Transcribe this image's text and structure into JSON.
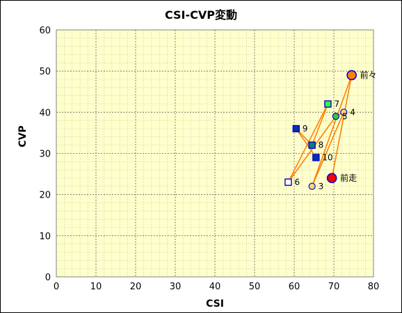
{
  "chart_data": {
    "type": "scatter",
    "title": "CSI-CVP変動",
    "xlabel": "CSI",
    "ylabel": "CVP",
    "xlim": [
      0,
      80
    ],
    "ylim": [
      0,
      60
    ],
    "xticks": [
      0,
      10,
      20,
      30,
      40,
      50,
      60,
      70,
      80
    ],
    "yticks": [
      0,
      10,
      20,
      30,
      40,
      50,
      60
    ],
    "grid": true,
    "plot_background": "#ffffcc",
    "line_color": "#ff8000",
    "connection_order": [
      "10",
      "9",
      "8",
      "7",
      "6",
      "5",
      "4",
      "3",
      "前々",
      "前走"
    ],
    "points": [
      {
        "label": "前走",
        "x": 69.5,
        "y": 24,
        "marker": "circle",
        "size": "large",
        "fill": "#ff0000",
        "stroke": "#0000cc"
      },
      {
        "label": "前々",
        "x": 74.5,
        "y": 49,
        "marker": "circle",
        "size": "large",
        "fill": "#ff8000",
        "stroke": "#0000cc"
      },
      {
        "label": "3",
        "x": 64.5,
        "y": 22,
        "marker": "circle",
        "size": "small",
        "fill": "#ffd966",
        "stroke": "#0000cc"
      },
      {
        "label": "4",
        "x": 72.5,
        "y": 40,
        "marker": "circle",
        "size": "small",
        "fill": "#ffd966",
        "stroke": "#0000cc"
      },
      {
        "label": "5",
        "x": 70.5,
        "y": 39,
        "marker": "circle",
        "size": "small",
        "fill": "#33cc33",
        "stroke": "#0000cc"
      },
      {
        "label": "6",
        "x": 58.5,
        "y": 23,
        "marker": "square",
        "size": "small",
        "fill": "#ffffff",
        "stroke": "#0000cc"
      },
      {
        "label": "7",
        "x": 68.5,
        "y": 42,
        "marker": "square",
        "size": "small",
        "fill": "#33ff33",
        "stroke": "#0000cc"
      },
      {
        "label": "8",
        "x": 64.5,
        "y": 32,
        "marker": "square",
        "size": "small",
        "fill": "#008080",
        "stroke": "#0000cc"
      },
      {
        "label": "9",
        "x": 60.5,
        "y": 36,
        "marker": "square",
        "size": "small",
        "fill": "#0033aa",
        "stroke": "#0000cc"
      },
      {
        "label": "10",
        "x": 65.5,
        "y": 29,
        "marker": "square",
        "size": "small",
        "fill": "#0033aa",
        "stroke": "#0000cc"
      }
    ]
  }
}
